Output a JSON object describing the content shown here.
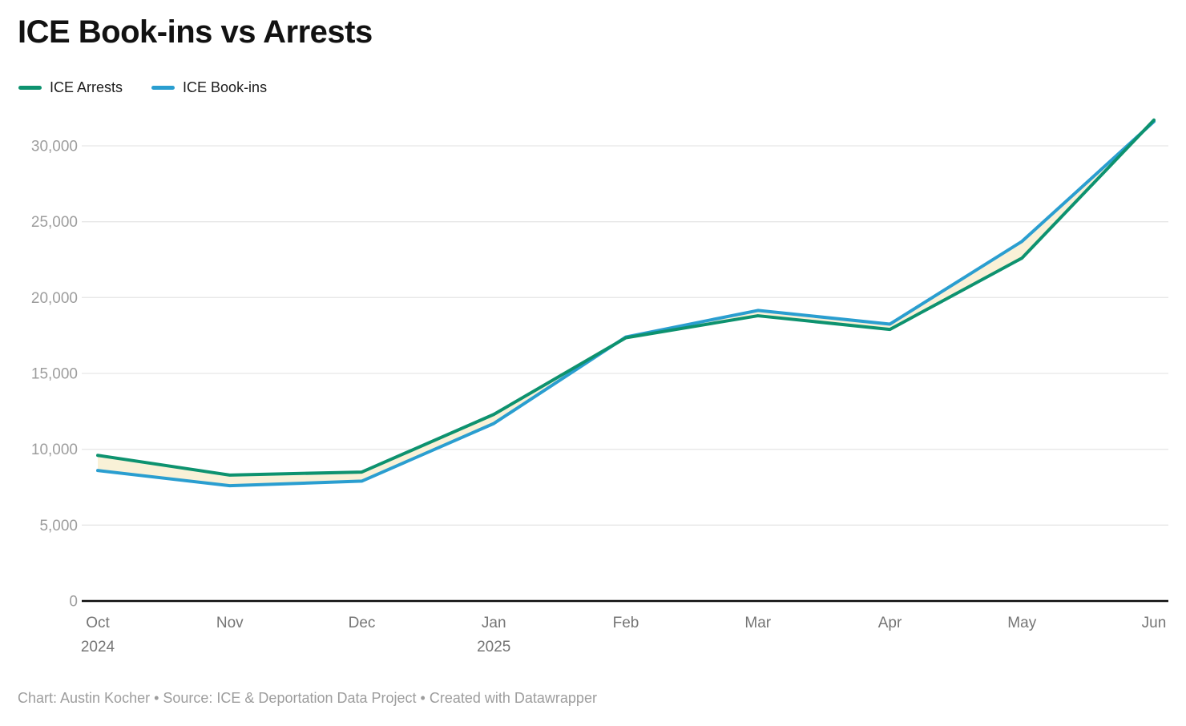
{
  "title": "ICE Book-ins vs Arrests",
  "footer": "Chart: Austin Kocher • Source: ICE & Deportation Data Project • Created with Datawrapper",
  "colors": {
    "arrests_green": "#0d926f",
    "bookins_blue": "#2a9ed0",
    "fill_between": "#f9f1d7",
    "gridline": "#e7e7e7",
    "baseline": "#0b0b0b"
  },
  "chart_data": {
    "type": "line",
    "title": "ICE Book-ins vs Arrests",
    "x": [
      "Oct",
      "Nov",
      "Dec",
      "Jan",
      "Feb",
      "Mar",
      "Apr",
      "May",
      "Jun"
    ],
    "x_sublabels": {
      "Oct": "2024",
      "Jan": "2025"
    },
    "series": [
      {
        "name": "ICE Arrests",
        "color": "#0d926f",
        "values": [
          9600,
          8300,
          8500,
          12300,
          17350,
          18800,
          17900,
          22600,
          31700
        ]
      },
      {
        "name": "ICE Book-ins",
        "color": "#2a9ed0",
        "values": [
          8600,
          7600,
          7900,
          11700,
          17400,
          19150,
          18250,
          23700,
          31600
        ]
      }
    ],
    "fill_between_color": "#f9f1d7",
    "yticks": [
      0,
      5000,
      10000,
      15000,
      20000,
      25000,
      30000
    ],
    "ylim": [
      0,
      31700
    ],
    "grid": "horizontal",
    "legend_position": "top-left",
    "xlabel": "",
    "ylabel": ""
  }
}
